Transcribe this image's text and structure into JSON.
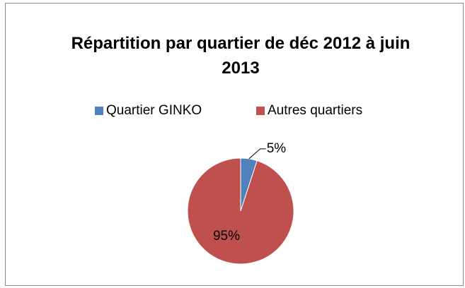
{
  "chart_data": {
    "type": "pie",
    "title": "Répartition par quartier de déc 2012 à juin 2013",
    "categories": [
      "Quartier GINKO",
      "Autres quartiers"
    ],
    "values": [
      5,
      95
    ],
    "value_labels": [
      "5%",
      "95%"
    ],
    "colors": [
      "#4f81bd",
      "#c0504d"
    ],
    "legend": "top"
  }
}
